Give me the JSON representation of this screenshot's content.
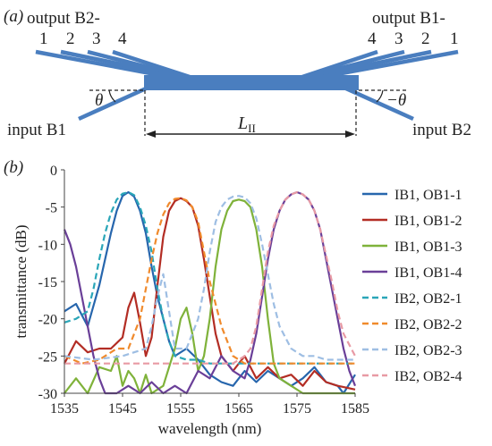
{
  "panel_a": {
    "label": "(a)",
    "output_left": {
      "title": "output B2-",
      "numbers": [
        "1",
        "2",
        "3",
        "4"
      ]
    },
    "output_right": {
      "title": "output B1-",
      "numbers": [
        "4",
        "3",
        "2",
        "1"
      ]
    },
    "input_left": "input B1",
    "input_right": "input B2",
    "angle_left": "θ",
    "angle_right": "−θ",
    "length_label": "L",
    "length_subscript": "II"
  },
  "panel_b_label": "(b)",
  "colors": {
    "waveguide": "#4a7ebf",
    "ob1": "#2766ad",
    "ob2": "#b32d24",
    "ob3": "#7fb23a",
    "ob4": "#6a3f98",
    "ob2_1": "#2aa6b8",
    "ob2_2": "#f08a2c",
    "ob2_3": "#9ebee3",
    "ob2_4": "#e89aa4"
  },
  "chart_data": {
    "type": "line",
    "xlabel": "wavelength (nm)",
    "ylabel": "transmittance (dB)",
    "xlim": [
      1535,
      1585
    ],
    "ylim": [
      -30,
      0
    ],
    "xticks": [
      1535,
      1545,
      1555,
      1565,
      1575,
      1585
    ],
    "yticks": [
      0,
      -5,
      -10,
      -15,
      -20,
      -25,
      -30
    ],
    "xtick_labels": [
      "1535",
      "1545",
      "1555",
      "1565",
      "1575",
      "1585"
    ],
    "ytick_labels": [
      "0",
      "-5",
      "-10",
      "-15",
      "-20",
      "-25",
      "-30"
    ],
    "grid": false,
    "legend_position": "right",
    "series": [
      {
        "name": "IB1, OB1-1",
        "color": "#2766ad",
        "dash": false,
        "x": [
          1535,
          1537,
          1539,
          1541,
          1542,
          1543,
          1544,
          1545,
          1546,
          1547,
          1548,
          1549,
          1550,
          1551,
          1552,
          1553,
          1554,
          1556,
          1558,
          1560,
          1562,
          1564,
          1566,
          1568,
          1570,
          1572,
          1574,
          1576,
          1578,
          1580,
          1582,
          1583,
          1585
        ],
        "y": [
          -19,
          -18,
          -21,
          -15.5,
          -12,
          -8.5,
          -5.5,
          -3.5,
          -3,
          -3.6,
          -5.5,
          -8.5,
          -13,
          -17,
          -20,
          -23,
          -25,
          -24,
          -25.5,
          -27.5,
          -28.5,
          -29,
          -27,
          -28.5,
          -27,
          -28,
          -29,
          -28,
          -26.5,
          -28.5,
          -29,
          -30,
          -27.5
        ]
      },
      {
        "name": "IB1, OB1-2",
        "color": "#b32d24",
        "dash": false,
        "x": [
          1535,
          1537,
          1539,
          1541,
          1543,
          1545,
          1546,
          1547,
          1548,
          1549,
          1550,
          1551,
          1552,
          1553,
          1554,
          1555,
          1556,
          1557,
          1558,
          1559,
          1560,
          1561,
          1562,
          1564,
          1566,
          1568,
          1570,
          1572,
          1574,
          1576,
          1578,
          1580,
          1582,
          1585
        ],
        "y": [
          -26,
          -23,
          -24.5,
          -24,
          -24,
          -22.5,
          -18.5,
          -16.5,
          -20.5,
          -25,
          -22.5,
          -15.5,
          -9,
          -5.5,
          -4.2,
          -3.8,
          -4.2,
          -5,
          -7.5,
          -12,
          -17,
          -22,
          -25,
          -27,
          -25,
          -28,
          -26.5,
          -28,
          -27.5,
          -29,
          -27,
          -28.5,
          -29,
          -29.5
        ]
      },
      {
        "name": "IB1, OB1-3",
        "color": "#7fb23a",
        "dash": false,
        "x": [
          1535,
          1537,
          1539,
          1541,
          1543,
          1544,
          1545,
          1546,
          1547,
          1548,
          1549,
          1550,
          1552,
          1553,
          1554,
          1555,
          1556,
          1557,
          1558,
          1559,
          1560,
          1561,
          1562,
          1563,
          1564,
          1565,
          1566,
          1567,
          1568,
          1569,
          1570,
          1571,
          1572,
          1574,
          1576,
          1580,
          1585
        ],
        "y": [
          -30,
          -28,
          -30,
          -26.5,
          -27,
          -25,
          -29,
          -27,
          -28,
          -30,
          -27.5,
          -30,
          -29,
          -26.5,
          -24,
          -20,
          -18.5,
          -22,
          -27,
          -25,
          -20,
          -13,
          -8,
          -5.5,
          -4.2,
          -4,
          -4.2,
          -5,
          -8,
          -13,
          -20,
          -26,
          -28,
          -29,
          -30,
          -30,
          -30
        ]
      },
      {
        "name": "IB1, OB1-4",
        "color": "#6a3f98",
        "dash": false,
        "x": [
          1535,
          1536,
          1537,
          1538,
          1539,
          1540,
          1541,
          1542,
          1544,
          1546,
          1548,
          1550,
          1552,
          1554,
          1556,
          1558,
          1560,
          1562,
          1564,
          1566,
          1567,
          1568,
          1569,
          1570,
          1571,
          1572,
          1573,
          1574,
          1575,
          1576,
          1577,
          1578,
          1579,
          1580,
          1581,
          1582,
          1583,
          1584,
          1585
        ],
        "y": [
          -8,
          -10,
          -13,
          -17,
          -21,
          -25,
          -28,
          -30,
          -30,
          -29,
          -30,
          -28.5,
          -30,
          -29,
          -30,
          -27,
          -28,
          -25,
          -27,
          -28,
          -25.5,
          -22,
          -17,
          -12,
          -8,
          -5.5,
          -4,
          -3.3,
          -3,
          -3.3,
          -4,
          -5.5,
          -8,
          -12,
          -16,
          -20,
          -24,
          -27,
          -29
        ]
      },
      {
        "name": "IB2, OB2-1",
        "color": "#2aa6b8",
        "dash": true,
        "x": [
          1535,
          1537,
          1539,
          1540,
          1541,
          1542,
          1543,
          1544,
          1545,
          1546,
          1547,
          1548,
          1549,
          1550,
          1551,
          1552,
          1553,
          1554,
          1556,
          1558,
          1560,
          1562,
          1566,
          1570,
          1575,
          1580,
          1585
        ],
        "y": [
          -20.5,
          -20,
          -19,
          -16,
          -12,
          -8.5,
          -5.8,
          -4,
          -3.2,
          -3,
          -3.4,
          -5,
          -7.5,
          -11,
          -16,
          -20,
          -23,
          -25,
          -25.5,
          -25.5,
          -26,
          -26,
          -26,
          -26,
          -26,
          -26,
          -26
        ]
      },
      {
        "name": "IB2, OB2-2",
        "color": "#f08a2c",
        "dash": true,
        "x": [
          1535,
          1538,
          1541,
          1544,
          1546,
          1548,
          1549,
          1550,
          1551,
          1552,
          1553,
          1554,
          1555,
          1556,
          1557,
          1558,
          1559,
          1560,
          1561,
          1562,
          1564,
          1566,
          1570,
          1575,
          1580,
          1585
        ],
        "y": [
          -25,
          -26,
          -25.5,
          -24,
          -24,
          -20,
          -16,
          -12,
          -8.5,
          -6,
          -4.5,
          -3.9,
          -3.8,
          -4.1,
          -5,
          -7,
          -11,
          -15,
          -18,
          -21,
          -25,
          -26,
          -26,
          -26,
          -26,
          -26
        ]
      },
      {
        "name": "IB2, OB2-3",
        "color": "#9ebee3",
        "dash": true,
        "x": [
          1535,
          1540,
          1545,
          1549,
          1550,
          1551,
          1552,
          1553,
          1554,
          1556,
          1558,
          1559,
          1560,
          1561,
          1562,
          1563,
          1564,
          1565,
          1566,
          1567,
          1568,
          1569,
          1570,
          1571,
          1572,
          1574,
          1576,
          1578,
          1580,
          1585
        ],
        "y": [
          -25,
          -25.5,
          -25,
          -24,
          -21,
          -17,
          -14,
          -19,
          -24,
          -24,
          -20,
          -16,
          -11,
          -7,
          -5,
          -4,
          -3.6,
          -3.5,
          -3.7,
          -4.5,
          -6.5,
          -10,
          -14,
          -18,
          -21,
          -24,
          -25,
          -25,
          -25.5,
          -25.5
        ]
      },
      {
        "name": "IB2, OB2-4",
        "color": "#e89aa4",
        "dash": true,
        "x": [
          1535,
          1540,
          1545,
          1550,
          1555,
          1560,
          1564,
          1566,
          1567,
          1568,
          1569,
          1570,
          1571,
          1572,
          1573,
          1574,
          1575,
          1576,
          1577,
          1578,
          1579,
          1580,
          1581,
          1582,
          1583,
          1585
        ],
        "y": [
          -26,
          -26,
          -26,
          -26,
          -26,
          -26,
          -26,
          -25,
          -24,
          -21,
          -16,
          -11,
          -7.5,
          -5.5,
          -4,
          -3.3,
          -3,
          -3.3,
          -4,
          -5.5,
          -8,
          -11.5,
          -15,
          -19,
          -22,
          -25
        ]
      }
    ]
  }
}
